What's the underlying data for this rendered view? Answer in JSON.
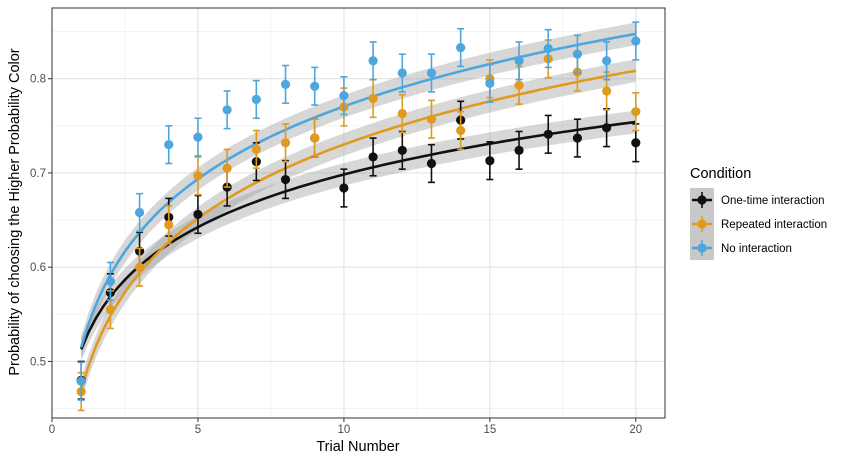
{
  "chart_data": {
    "type": "scatter",
    "title": "",
    "xlabel": "Trial Number",
    "ylabel": "Probability of choosing the Higher Probability Color",
    "xlim": [
      0,
      21
    ],
    "ylim": [
      0.44,
      0.875
    ],
    "x_ticks": [
      0,
      5,
      10,
      15,
      20
    ],
    "y_ticks": [
      0.5,
      0.6,
      0.7,
      0.8
    ],
    "x_tick_labels": [
      "0",
      "5",
      "10",
      "15",
      "20"
    ],
    "y_tick_labels": [
      "0.5",
      "0.6",
      "0.7",
      "0.8"
    ],
    "grid": true,
    "legend_position": "right",
    "legend_title": "Condition",
    "x": [
      1,
      2,
      3,
      4,
      5,
      6,
      7,
      8,
      9,
      10,
      11,
      12,
      13,
      14,
      15,
      16,
      17,
      18,
      19,
      20
    ],
    "series": [
      {
        "name": "One-time interaction",
        "color": "#111111",
        "values": [
          0.48,
          0.573,
          0.617,
          0.653,
          0.656,
          0.685,
          0.712,
          0.693,
          0.737,
          0.684,
          0.717,
          0.724,
          0.71,
          0.756,
          0.713,
          0.724,
          0.741,
          0.737,
          0.748,
          0.732
        ],
        "error": [
          0.02,
          0.02,
          0.02,
          0.02,
          0.02,
          0.02,
          0.02,
          0.02,
          0.02,
          0.02,
          0.02,
          0.02,
          0.02,
          0.02,
          0.02,
          0.02,
          0.02,
          0.02,
          0.02,
          0.02
        ],
        "fit": {
          "a": 0.513,
          "b": 0.0805
        }
      },
      {
        "name": "Repeated interaction",
        "color": "#e09a20",
        "values": [
          0.468,
          0.555,
          0.6,
          0.645,
          0.697,
          0.705,
          0.725,
          0.732,
          0.737,
          0.77,
          0.779,
          0.763,
          0.757,
          0.745,
          0.8,
          0.793,
          0.821,
          0.807,
          0.787,
          0.765
        ],
        "error": [
          0.02,
          0.02,
          0.02,
          0.02,
          0.02,
          0.02,
          0.02,
          0.02,
          0.02,
          0.02,
          0.02,
          0.02,
          0.02,
          0.02,
          0.02,
          0.02,
          0.02,
          0.02,
          0.02,
          0.02
        ],
        "fit": {
          "a": 0.47,
          "b": 0.113
        }
      },
      {
        "name": "No interaction",
        "color": "#4da6de",
        "values": [
          0.479,
          0.585,
          0.658,
          0.73,
          0.738,
          0.767,
          0.778,
          0.794,
          0.792,
          0.782,
          0.819,
          0.806,
          0.806,
          0.833,
          0.795,
          0.819,
          0.832,
          0.826,
          0.819,
          0.84
        ],
        "error": [
          0.02,
          0.02,
          0.02,
          0.02,
          0.02,
          0.02,
          0.02,
          0.02,
          0.02,
          0.02,
          0.02,
          0.02,
          0.02,
          0.02,
          0.02,
          0.02,
          0.02,
          0.02,
          0.02,
          0.02
        ],
        "fit": {
          "a": 0.515,
          "b": 0.111
        }
      }
    ]
  }
}
